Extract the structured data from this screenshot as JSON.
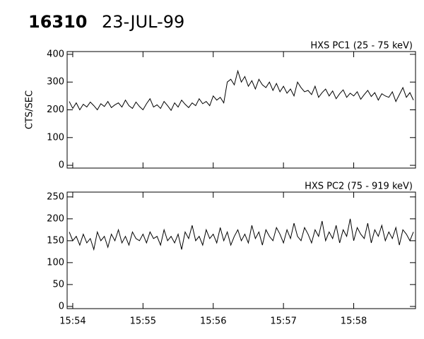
{
  "header": {
    "number": "16310",
    "date": "23-JUL-99"
  },
  "chart_data": [
    {
      "type": "line",
      "title": "HXS PC1 (25 - 75 keV)",
      "y_label": "CTS/SEC",
      "color": "#000000",
      "xlim": [
        953.92,
        958.88
      ],
      "xticks": [
        954,
        955,
        956,
        957,
        958
      ],
      "ylim": [
        -10,
        410
      ],
      "yticks": [
        0,
        100,
        200,
        300,
        400
      ],
      "x": [
        953.95,
        954,
        954.05,
        954.1,
        954.15,
        954.2,
        954.25,
        954.3,
        954.35,
        954.4,
        954.45,
        954.5,
        954.55,
        954.6,
        954.65,
        954.7,
        954.75,
        954.8,
        954.85,
        954.9,
        954.95,
        955,
        955.05,
        955.1,
        955.15,
        955.2,
        955.25,
        955.3,
        955.35,
        955.4,
        955.45,
        955.5,
        955.55,
        955.6,
        955.65,
        955.7,
        955.75,
        955.8,
        955.85,
        955.9,
        955.95,
        956,
        956.05,
        956.1,
        956.15,
        956.2,
        956.25,
        956.3,
        956.35,
        956.4,
        956.45,
        956.5,
        956.55,
        956.6,
        956.65,
        956.7,
        956.75,
        956.8,
        956.85,
        956.9,
        956.95,
        957,
        957.05,
        957.1,
        957.15,
        957.2,
        957.25,
        957.3,
        957.35,
        957.4,
        957.45,
        957.5,
        957.55,
        957.6,
        957.65,
        957.7,
        957.75,
        957.8,
        957.85,
        957.9,
        957.95,
        958,
        958.05,
        958.1,
        958.15,
        958.2,
        958.25,
        958.3,
        958.35,
        958.4,
        958.45,
        958.5,
        958.55,
        958.6,
        958.65,
        958.7,
        958.75,
        958.8,
        958.85
      ],
      "values": [
        230,
        205,
        225,
        200,
        220,
        210,
        228,
        215,
        200,
        222,
        212,
        230,
        208,
        218,
        225,
        210,
        235,
        215,
        205,
        228,
        212,
        200,
        222,
        240,
        210,
        218,
        205,
        230,
        215,
        198,
        225,
        210,
        235,
        220,
        208,
        225,
        215,
        240,
        222,
        230,
        215,
        250,
        235,
        245,
        225,
        300,
        310,
        290,
        340,
        300,
        320,
        285,
        305,
        275,
        310,
        290,
        280,
        300,
        270,
        295,
        265,
        285,
        260,
        275,
        250,
        300,
        280,
        265,
        270,
        255,
        285,
        245,
        262,
        275,
        250,
        268,
        240,
        258,
        272,
        245,
        260,
        250,
        265,
        238,
        255,
        270,
        248,
        262,
        235,
        258,
        250,
        245,
        265,
        230,
        255,
        280,
        245,
        262,
        235
      ]
    },
    {
      "type": "line",
      "title": "HXS PC2 (75 - 919 keV)",
      "color": "#000000",
      "xlim": [
        953.92,
        958.88
      ],
      "xticks": [
        {
          "value": 954,
          "label": "15:54"
        },
        {
          "value": 955,
          "label": "15:55"
        },
        {
          "value": 956,
          "label": "15:56"
        },
        {
          "value": 957,
          "label": "15:57"
        },
        {
          "value": 958,
          "label": "15:58"
        }
      ],
      "ylim": [
        -5,
        261
      ],
      "yticks": [
        0,
        50,
        100,
        150,
        200,
        250
      ],
      "x": [
        953.95,
        954,
        954.05,
        954.1,
        954.15,
        954.2,
        954.25,
        954.3,
        954.35,
        954.4,
        954.45,
        954.5,
        954.55,
        954.6,
        954.65,
        954.7,
        954.75,
        954.8,
        954.85,
        954.9,
        954.95,
        955,
        955.05,
        955.1,
        955.15,
        955.2,
        955.25,
        955.3,
        955.35,
        955.4,
        955.45,
        955.5,
        955.55,
        955.6,
        955.65,
        955.7,
        955.75,
        955.8,
        955.85,
        955.9,
        955.95,
        956,
        956.05,
        956.1,
        956.15,
        956.2,
        956.25,
        956.3,
        956.35,
        956.4,
        956.45,
        956.5,
        956.55,
        956.6,
        956.65,
        956.7,
        956.75,
        956.8,
        956.85,
        956.9,
        956.95,
        957,
        957.05,
        957.1,
        957.15,
        957.2,
        957.25,
        957.3,
        957.35,
        957.4,
        957.45,
        957.5,
        957.55,
        957.6,
        957.65,
        957.7,
        957.75,
        957.8,
        957.85,
        957.9,
        957.95,
        958,
        958.05,
        958.1,
        958.15,
        958.2,
        958.25,
        958.3,
        958.35,
        958.4,
        958.45,
        958.5,
        958.55,
        958.6,
        958.65,
        958.7,
        958.75,
        958.8,
        958.85
      ],
      "values": [
        170,
        150,
        160,
        140,
        165,
        145,
        155,
        130,
        170,
        150,
        160,
        135,
        165,
        150,
        175,
        145,
        160,
        140,
        170,
        155,
        150,
        165,
        145,
        170,
        155,
        160,
        140,
        175,
        150,
        160,
        145,
        165,
        130,
        170,
        155,
        185,
        150,
        160,
        140,
        175,
        155,
        165,
        145,
        180,
        150,
        170,
        140,
        160,
        175,
        150,
        165,
        145,
        185,
        155,
        170,
        140,
        175,
        160,
        150,
        180,
        165,
        145,
        175,
        155,
        190,
        160,
        150,
        180,
        165,
        145,
        175,
        160,
        195,
        150,
        170,
        155,
        185,
        145,
        175,
        160,
        200,
        150,
        180,
        165,
        155,
        190,
        145,
        175,
        160,
        185,
        150,
        170,
        155,
        180,
        140,
        175,
        165,
        150,
        170
      ]
    }
  ]
}
